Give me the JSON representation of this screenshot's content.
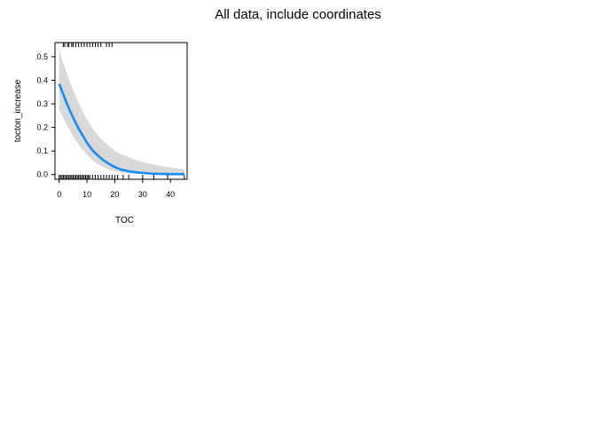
{
  "title": "All data, include coordinates",
  "chart_data": {
    "type": "line",
    "title": "All data, include coordinates",
    "xlabel": "TOC",
    "ylabel": "tocton_increase",
    "xlim": [
      -1.5,
      46
    ],
    "ylim": [
      -0.02,
      0.56
    ],
    "x_ticks": [
      0,
      10,
      20,
      30,
      40
    ],
    "y_ticks": [
      0.0,
      0.1,
      0.2,
      0.3,
      0.4,
      0.5
    ],
    "x_tick_labels": [
      "0",
      "10",
      "20",
      "30",
      "40"
    ],
    "y_tick_labels": [
      "0.0",
      "0.1",
      "0.2",
      "0.3",
      "0.4",
      "0.5"
    ],
    "grid": false,
    "legend": "none",
    "series": [
      {
        "x": [
          0,
          1,
          2,
          3,
          4,
          5,
          6,
          7,
          8,
          9,
          10,
          12,
          14,
          16,
          18,
          20,
          22,
          25,
          28,
          30,
          33,
          36,
          40,
          45
        ],
        "y": [
          0.385,
          0.355,
          0.325,
          0.295,
          0.268,
          0.243,
          0.218,
          0.195,
          0.175,
          0.155,
          0.135,
          0.103,
          0.08,
          0.06,
          0.045,
          0.032,
          0.022,
          0.014,
          0.009,
          0.007,
          0.004,
          0.003,
          0.002,
          0.002
        ],
        "lower": [
          0.275,
          0.253,
          0.228,
          0.205,
          0.183,
          0.163,
          0.145,
          0.127,
          0.111,
          0.097,
          0.084,
          0.06,
          0.043,
          0.03,
          0.021,
          0.014,
          0.009,
          0.005,
          0.003,
          0.002,
          0.001,
          0.0,
          0.0,
          -0.002
        ],
        "upper": [
          0.53,
          0.49,
          0.455,
          0.42,
          0.39,
          0.36,
          0.33,
          0.305,
          0.28,
          0.255,
          0.235,
          0.195,
          0.165,
          0.14,
          0.12,
          0.1,
          0.088,
          0.073,
          0.06,
          0.053,
          0.045,
          0.038,
          0.03,
          0.022
        ]
      }
    ],
    "rug_x_top": [
      1.5,
      2,
      3,
      3.5,
      4.5,
      5,
      6,
      7,
      8,
      9,
      10,
      11,
      12,
      13,
      14,
      15,
      17,
      18,
      19
    ],
    "rug_x_bottom": [
      0,
      0.5,
      1,
      1.5,
      2,
      2.5,
      3,
      3.5,
      4,
      4.5,
      5,
      5.5,
      6,
      6.5,
      7,
      7.5,
      8,
      8.5,
      9,
      9.5,
      10,
      10.5,
      11,
      12,
      13,
      14,
      15,
      16,
      17,
      18,
      19,
      20,
      21,
      23,
      25,
      30,
      34,
      39,
      45
    ],
    "colors": {
      "line": "#1a8cf0",
      "band": "#d9d9d9",
      "axis": "#000000"
    }
  }
}
